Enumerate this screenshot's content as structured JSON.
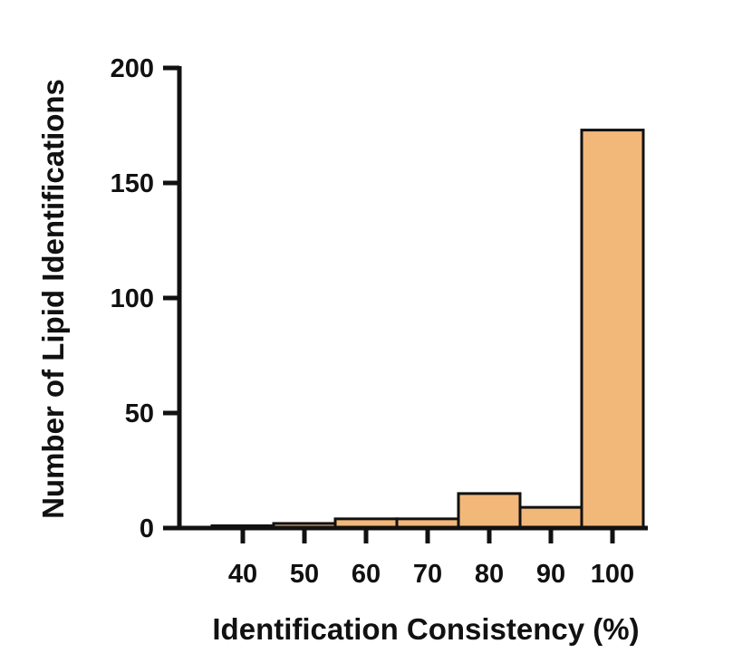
{
  "chart_data": {
    "type": "bar",
    "title": "",
    "xlabel": "Identification Consistency (%)",
    "ylabel": "Number of Lipid Identifications",
    "categories": [
      "40",
      "50",
      "60",
      "70",
      "80",
      "90",
      "100"
    ],
    "values": [
      1,
      2,
      4,
      4,
      15,
      9,
      173
    ],
    "ylim": [
      0,
      200
    ],
    "yticks": [
      "0",
      "50",
      "100",
      "150",
      "200"
    ],
    "grid": false,
    "bar_color": "#F2B87A",
    "edge_color": "#111111"
  }
}
